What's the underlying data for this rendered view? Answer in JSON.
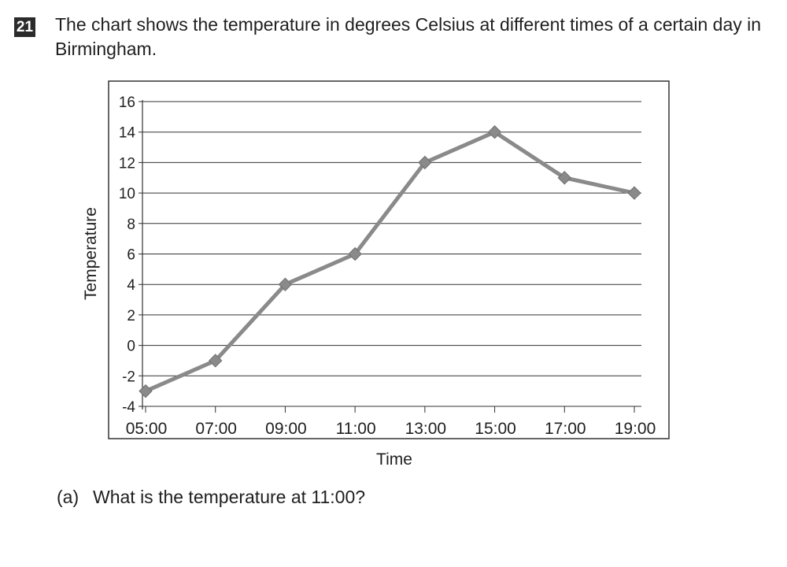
{
  "question": {
    "number": "21",
    "text": "The chart shows the temperature in degrees Celsius at different times of a certain day in Birmingham."
  },
  "part_a": {
    "label": "(a)",
    "text": "What is the temperature at 11:00?"
  },
  "chart_data": {
    "type": "line",
    "title": "",
    "xlabel": "Time",
    "ylabel": "Temperature",
    "categories": [
      "05:00",
      "07:00",
      "09:00",
      "11:00",
      "13:00",
      "15:00",
      "17:00",
      "19:00"
    ],
    "values": [
      -3,
      -1,
      4,
      6,
      12,
      14,
      11,
      10
    ],
    "ylim": [
      -4,
      16
    ],
    "yticks": [
      -4,
      -2,
      0,
      2,
      4,
      6,
      8,
      10,
      12,
      14,
      16
    ],
    "grid": true,
    "line_color": "#8a8a8a",
    "marker": "diamond"
  }
}
